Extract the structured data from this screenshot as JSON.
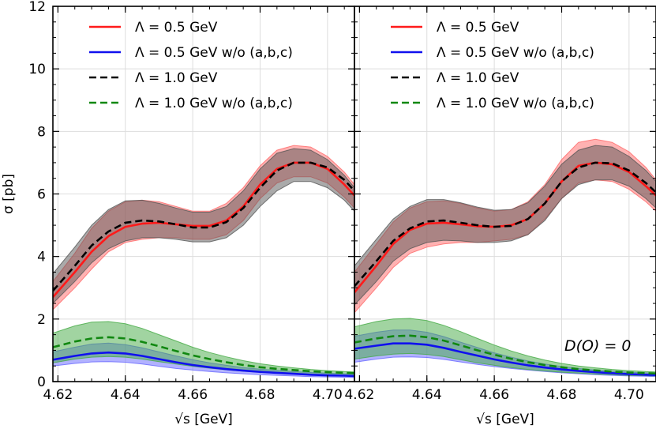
{
  "chart_data": {
    "type": "line",
    "xlabel": "√s [GeV]",
    "ylabel": "σ [pb]",
    "xlim": [
      4.6185,
      4.708
    ],
    "ylim": [
      0,
      12
    ],
    "xticks": [
      4.62,
      4.64,
      4.66,
      4.68,
      4.7
    ],
    "xtick_labels": [
      "4.62",
      "4.64",
      "4.66",
      "4.68",
      "4.70"
    ],
    "yticks": [
      0,
      2,
      4,
      6,
      8,
      10,
      12
    ],
    "ytick_labels": [
      "0",
      "2",
      "4",
      "6",
      "8",
      "10",
      "12"
    ],
    "grid": true,
    "legend_position": "top",
    "colors": {
      "red": "#ff1a1a",
      "blue": "#1010ee",
      "black": "#000000",
      "green": "#118811",
      "band_red": "#ff6666",
      "band_blue": "#6666ff",
      "band_black": "#555555",
      "band_green": "#44aa44"
    },
    "panels": [
      {
        "legend": [
          {
            "text": "Λ =  0.5 GeV",
            "series": 0
          },
          {
            "text": "Λ =  0.5 GeV w/o (a,b,c)",
            "series": 1
          },
          {
            "text": "Λ =  1.0 GeV",
            "series": 2
          },
          {
            "text": "Λ =  1.0 GeV w/o (a,b,c)",
            "series": 3
          }
        ],
        "annotation": "",
        "x": [
          4.6185,
          4.625,
          4.63,
          4.635,
          4.64,
          4.645,
          4.65,
          4.655,
          4.66,
          4.665,
          4.67,
          4.675,
          4.68,
          4.685,
          4.69,
          4.695,
          4.7,
          4.705,
          4.708
        ],
        "series": [
          {
            "name": "Λ = 0.5 GeV",
            "color": "red",
            "dash": false,
            "band": "band_red",
            "values": [
              2.7,
              3.5,
              4.15,
              4.65,
              4.95,
              5.05,
              5.08,
              5.03,
              4.98,
              4.98,
              5.15,
              5.6,
              6.3,
              6.8,
              7.0,
              7.0,
              6.8,
              6.3,
              5.95
            ],
            "upper": [
              3.2,
              4.1,
              4.9,
              5.45,
              5.75,
              5.8,
              5.75,
              5.6,
              5.45,
              5.45,
              5.7,
              6.2,
              6.9,
              7.4,
              7.55,
              7.5,
              7.2,
              6.7,
              6.3
            ],
            "lower": [
              2.3,
              3.0,
              3.6,
              4.15,
              4.45,
              4.55,
              4.6,
              4.6,
              4.55,
              4.55,
              4.7,
              5.15,
              5.85,
              6.35,
              6.55,
              6.55,
              6.35,
              5.9,
              5.55
            ]
          },
          {
            "name": "Λ = 0.5 GeV w/o (a,b,c)",
            "color": "blue",
            "dash": false,
            "band": "band_blue",
            "values": [
              0.7,
              0.82,
              0.9,
              0.93,
              0.9,
              0.82,
              0.72,
              0.62,
              0.53,
              0.46,
              0.4,
              0.35,
              0.31,
              0.28,
              0.25,
              0.22,
              0.2,
              0.19,
              0.18
            ],
            "upper": [
              0.95,
              1.1,
              1.2,
              1.23,
              1.18,
              1.08,
              0.95,
              0.82,
              0.7,
              0.6,
              0.52,
              0.45,
              0.4,
              0.36,
              0.32,
              0.29,
              0.27,
              0.25,
              0.24
            ],
            "lower": [
              0.5,
              0.58,
              0.63,
              0.64,
              0.62,
              0.56,
              0.49,
              0.42,
              0.37,
              0.32,
              0.28,
              0.25,
              0.22,
              0.2,
              0.18,
              0.16,
              0.15,
              0.14,
              0.13
            ]
          },
          {
            "name": "Λ = 1.0 GeV",
            "color": "black",
            "dash": true,
            "band": "band_black",
            "values": [
              2.9,
              3.7,
              4.35,
              4.8,
              5.08,
              5.15,
              5.12,
              5.03,
              4.93,
              4.93,
              5.1,
              5.55,
              6.2,
              6.75,
              7.0,
              7.0,
              6.85,
              6.45,
              6.1
            ],
            "upper": [
              3.45,
              4.3,
              5.0,
              5.5,
              5.78,
              5.8,
              5.7,
              5.55,
              5.42,
              5.42,
              5.6,
              6.1,
              6.8,
              7.3,
              7.45,
              7.4,
              7.1,
              6.6,
              6.2
            ],
            "lower": [
              2.5,
              3.2,
              3.8,
              4.25,
              4.5,
              4.6,
              4.6,
              4.55,
              4.47,
              4.47,
              4.6,
              5.0,
              5.6,
              6.1,
              6.4,
              6.4,
              6.2,
              5.8,
              5.45
            ]
          },
          {
            "name": "Λ = 1.0 GeV w/o (a,b,c)",
            "color": "green",
            "dash": true,
            "band": "band_green",
            "values": [
              1.1,
              1.28,
              1.38,
              1.42,
              1.38,
              1.27,
              1.13,
              0.98,
              0.84,
              0.72,
              0.62,
              0.53,
              0.46,
              0.41,
              0.37,
              0.33,
              0.3,
              0.28,
              0.27
            ],
            "upper": [
              1.55,
              1.78,
              1.9,
              1.92,
              1.85,
              1.7,
              1.5,
              1.3,
              1.1,
              0.93,
              0.79,
              0.67,
              0.57,
              0.5,
              0.44,
              0.39,
              0.35,
              0.32,
              0.31
            ],
            "lower": [
              0.6,
              0.72,
              0.78,
              0.8,
              0.78,
              0.72,
              0.64,
              0.56,
              0.49,
              0.43,
              0.38,
              0.33,
              0.3,
              0.27,
              0.24,
              0.22,
              0.2,
              0.19,
              0.18
            ]
          }
        ]
      },
      {
        "legend": [
          {
            "text": "Λ =  0.5 GeV",
            "series": 0
          },
          {
            "text": "Λ =  0.5 GeV w/o (a,b,c)",
            "series": 1
          },
          {
            "text": "Λ =  1.0 GeV",
            "series": 2
          },
          {
            "text": "Λ =  1.0 GeV w/o (a,b,c)",
            "series": 3
          }
        ],
        "annotation": "D(O) = 0",
        "annotation_math": {
          "base": "D",
          "sup": "(O)",
          "rest": " = 0"
        },
        "x": [
          4.6185,
          4.625,
          4.63,
          4.635,
          4.64,
          4.645,
          4.65,
          4.655,
          4.66,
          4.665,
          4.67,
          4.675,
          4.68,
          4.685,
          4.69,
          4.695,
          4.7,
          4.705,
          4.708
        ],
        "series": [
          {
            "name": "Λ = 0.5 GeV",
            "color": "red",
            "dash": false,
            "band": "band_red",
            "values": [
              2.85,
              3.7,
              4.4,
              4.85,
              5.05,
              5.08,
              5.03,
              4.97,
              4.95,
              5.0,
              5.2,
              5.7,
              6.4,
              6.9,
              7.0,
              6.95,
              6.7,
              6.25,
              5.95
            ],
            "upper": [
              3.5,
              4.4,
              5.1,
              5.55,
              5.75,
              5.78,
              5.7,
              5.55,
              5.45,
              5.5,
              5.75,
              6.3,
              7.1,
              7.65,
              7.75,
              7.65,
              7.35,
              6.85,
              6.45
            ],
            "lower": [
              2.2,
              3.0,
              3.65,
              4.1,
              4.3,
              4.4,
              4.45,
              4.45,
              4.5,
              4.55,
              4.7,
              5.2,
              5.85,
              6.35,
              6.45,
              6.4,
              6.15,
              5.75,
              5.45
            ]
          },
          {
            "name": "Λ = 0.5 GeV w/o (a,b,c)",
            "color": "blue",
            "dash": false,
            "band": "band_blue",
            "values": [
              1.05,
              1.15,
              1.22,
              1.22,
              1.18,
              1.08,
              0.95,
              0.83,
              0.71,
              0.61,
              0.52,
              0.45,
              0.39,
              0.34,
              0.3,
              0.27,
              0.24,
              0.22,
              0.21
            ],
            "upper": [
              1.45,
              1.58,
              1.65,
              1.65,
              1.58,
              1.44,
              1.26,
              1.09,
              0.92,
              0.78,
              0.66,
              0.56,
              0.48,
              0.42,
              0.37,
              0.33,
              0.3,
              0.28,
              0.27
            ],
            "lower": [
              0.62,
              0.72,
              0.78,
              0.79,
              0.77,
              0.71,
              0.63,
              0.55,
              0.48,
              0.42,
              0.37,
              0.32,
              0.28,
              0.25,
              0.22,
              0.2,
              0.18,
              0.17,
              0.16
            ]
          },
          {
            "name": "Λ = 1.0 GeV",
            "color": "black",
            "dash": true,
            "band": "band_black",
            "values": [
              3.05,
              3.85,
              4.5,
              4.9,
              5.12,
              5.15,
              5.08,
              5.0,
              4.95,
              4.98,
              5.2,
              5.7,
              6.4,
              6.85,
              7.0,
              6.98,
              6.75,
              6.35,
              6.05
            ],
            "upper": [
              3.7,
              4.55,
              5.2,
              5.6,
              5.82,
              5.82,
              5.72,
              5.58,
              5.48,
              5.5,
              5.72,
              6.25,
              6.95,
              7.4,
              7.55,
              7.5,
              7.2,
              6.75,
              6.4
            ],
            "lower": [
              2.45,
              3.2,
              3.85,
              4.25,
              4.45,
              4.52,
              4.5,
              4.45,
              4.45,
              4.5,
              4.7,
              5.15,
              5.85,
              6.3,
              6.45,
              6.45,
              6.25,
              5.85,
              5.55
            ]
          },
          {
            "name": "Λ = 1.0 GeV w/o (a,b,c)",
            "color": "green",
            "dash": true,
            "band": "band_green",
            "values": [
              1.25,
              1.38,
              1.45,
              1.47,
              1.42,
              1.31,
              1.16,
              1.0,
              0.86,
              0.73,
              0.62,
              0.53,
              0.46,
              0.4,
              0.36,
              0.32,
              0.29,
              0.27,
              0.26
            ],
            "upper": [
              1.75,
              1.92,
              2.0,
              2.02,
              1.95,
              1.8,
              1.6,
              1.38,
              1.17,
              0.98,
              0.82,
              0.69,
              0.58,
              0.5,
              0.44,
              0.39,
              0.35,
              0.32,
              0.31
            ],
            "lower": [
              0.72,
              0.82,
              0.88,
              0.9,
              0.87,
              0.8,
              0.7,
              0.6,
              0.52,
              0.45,
              0.39,
              0.34,
              0.3,
              0.27,
              0.24,
              0.22,
              0.2,
              0.19,
              0.18
            ]
          }
        ]
      }
    ]
  }
}
